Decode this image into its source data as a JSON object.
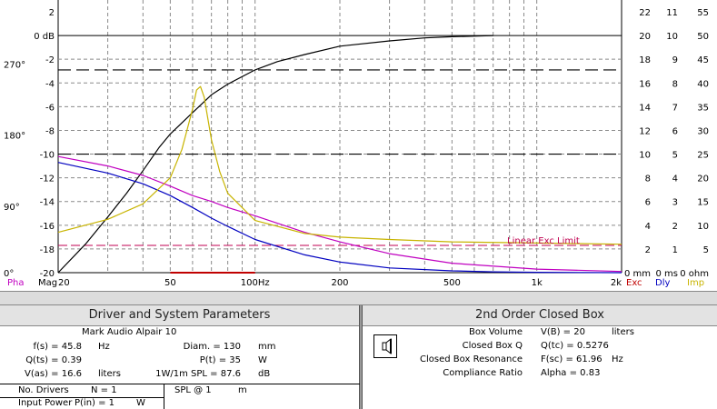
{
  "graph": {
    "y_left_ticks": [
      "2",
      "0 dB",
      "-2",
      "-4",
      "-6",
      "-8",
      "-10",
      "-12",
      "-14",
      "-16",
      "-18",
      "-20"
    ],
    "phase_ticks": [
      {
        "label": "270°",
        "val": -2.4
      },
      {
        "label": "180°",
        "val": -8.4
      },
      {
        "label": "90°",
        "val": -14.4
      },
      {
        "label": "0°",
        "val": -20
      }
    ],
    "x_ticks": [
      {
        "label": "20",
        "f": 20
      },
      {
        "label": "50",
        "f": 50
      },
      {
        "label": "100Hz",
        "f": 100
      },
      {
        "label": "200",
        "f": 200
      },
      {
        "label": "500",
        "f": 500
      },
      {
        "label": "1k",
        "f": 1000
      },
      {
        "label": "2k",
        "f": 2000
      }
    ],
    "right_col1": [
      "22",
      "20",
      "18",
      "16",
      "14",
      "12",
      "10",
      "8",
      "6",
      "4",
      "2",
      "0 mm"
    ],
    "right_col2": [
      "11",
      "10",
      "9",
      "8",
      "7",
      "6",
      "5",
      "4",
      "3",
      "2",
      "1",
      "0 ms"
    ],
    "right_col3": [
      "55",
      "50",
      "45",
      "40",
      "35",
      "30",
      "25",
      "20",
      "15",
      "10",
      "5",
      "0 ohm"
    ],
    "corner_left": {
      "pha": "Pha",
      "mag": "Mag"
    },
    "corner_right": {
      "exc": "Exc",
      "dly": "Dly",
      "imp": "Imp"
    },
    "limit_label": "Linear Exc Limit",
    "colors": {
      "mag": "#000000",
      "phase": "#c000c0",
      "delay": "#0000c0",
      "imp": "#c8b400",
      "exc": "#c00000",
      "limit": "#c00050"
    }
  },
  "chart_data": {
    "type": "line",
    "xscale": "log",
    "xlim": [
      20,
      2000
    ],
    "ylim": [
      -20,
      2
    ],
    "ylabel": "dB",
    "series": [
      {
        "name": "Mag",
        "x": [
          20,
          25,
          30,
          35,
          40,
          45.8,
          50,
          60,
          70,
          80,
          100,
          120,
          150,
          200,
          300,
          400,
          500,
          700
        ],
        "y": [
          -20,
          -17.6,
          -15.3,
          -13.3,
          -11.4,
          -9.4,
          -8.3,
          -6.5,
          -5.0,
          -4.1,
          -2.9,
          -2.2,
          -1.6,
          -0.9,
          -0.45,
          -0.2,
          -0.1,
          0
        ]
      },
      {
        "name": "Pha",
        "x": [
          20,
          30,
          40,
          50,
          60,
          70,
          80,
          100,
          150,
          200,
          300,
          500,
          1000,
          2000
        ],
        "y": [
          -10.2,
          -11.0,
          -11.8,
          -12.7,
          -13.5,
          -14.0,
          -14.5,
          -15.2,
          -16.6,
          -17.4,
          -18.4,
          -19.2,
          -19.7,
          -19.9
        ]
      },
      {
        "name": "Dly",
        "x": [
          20,
          30,
          40,
          50,
          60,
          70,
          80,
          100,
          150,
          200,
          300,
          500,
          700,
          1000,
          2000
        ],
        "y": [
          -10.7,
          -11.6,
          -12.5,
          -13.5,
          -14.5,
          -15.4,
          -16.1,
          -17.2,
          -18.5,
          -19.1,
          -19.6,
          -19.85,
          -19.93,
          -19.97,
          -20
        ]
      },
      {
        "name": "Imp",
        "x": [
          20,
          30,
          40,
          50,
          55,
          60,
          62,
          64,
          66,
          70,
          75,
          80,
          100,
          150,
          200,
          300,
          500,
          1000,
          2000
        ],
        "y": [
          -16.6,
          -15.5,
          -14.2,
          -12.0,
          -9.6,
          -6.2,
          -4.6,
          -4.3,
          -5.2,
          -8.8,
          -11.5,
          -13.3,
          -15.6,
          -16.7,
          -17.0,
          -17.2,
          -17.4,
          -17.5,
          -17.6
        ]
      },
      {
        "name": "Exc",
        "x": [
          50,
          100
        ],
        "y": [
          -20,
          -20
        ]
      }
    ],
    "reference_lines": [
      {
        "name": "Linear Exc Limit",
        "y": -17.7
      },
      {
        "name": "dash-upper",
        "y": -2.9
      },
      {
        "name": "dash-mid",
        "y": -10
      }
    ]
  },
  "left_panel": {
    "title": "Driver and System Parameters",
    "driver_name": "Mark Audio  Alpair 10",
    "fs": {
      "label": "f(s) = 45.8",
      "unit": "Hz"
    },
    "qts": {
      "label": "Q(ts) = 0.39"
    },
    "vas": {
      "label": "V(as) = 16.6",
      "unit": "liters"
    },
    "diam": {
      "label": "Diam. = 130",
      "unit": "mm"
    },
    "pt": {
      "label": "P(t) = 35",
      "unit": "W"
    },
    "spl": {
      "label": "1W/1m SPL = 87.6",
      "unit": "dB"
    },
    "no_drivers": {
      "label": "No. Drivers",
      "value": "N = 1"
    },
    "spl_at": {
      "label": "SPL @ 1",
      "unit": "m"
    },
    "input_power": {
      "label": "Input Power",
      "value": "P(in) = 1",
      "unit": "W"
    }
  },
  "right_panel": {
    "title": "2nd Order Closed Box",
    "rows": [
      {
        "label": "Box Volume",
        "value": "V(B) = 20",
        "unit": "liters"
      },
      {
        "label": "Closed Box Q",
        "value": "Q(tc) = 0.5276",
        "unit": ""
      },
      {
        "label": "Closed Box Resonance",
        "value": "F(sc) = 61.96",
        "unit": "Hz"
      },
      {
        "label": "Compliance Ratio",
        "value": "Alpha = 0.83",
        "unit": ""
      }
    ]
  }
}
